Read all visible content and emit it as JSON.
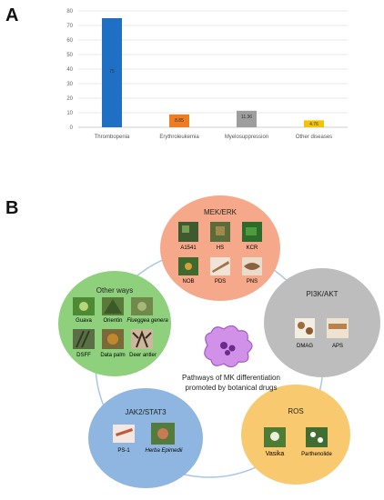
{
  "panel_a": {
    "label": "A",
    "chart_data": {
      "type": "bar",
      "categories": [
        "Thrombopenia",
        "Erythroleukemia",
        "Myelosuppression",
        "Other diseases"
      ],
      "values": [
        75,
        8.85,
        11.36,
        4.76
      ],
      "value_labels": [
        "75",
        "8.85",
        "11.36",
        "4.76"
      ],
      "bar_colors": [
        "#1f6fc5",
        "#ee7d22",
        "#9e9e9e",
        "#f5c400"
      ],
      "yticks": [
        0,
        10,
        20,
        30,
        40,
        50,
        60,
        70,
        80
      ],
      "ylim": [
        0,
        80
      ],
      "grid": true,
      "title": "",
      "xlabel": "",
      "ylabel": ""
    }
  },
  "panel_b": {
    "label": "B",
    "center": {
      "line1": "Pathways of MK differentiation",
      "line2": "promoted by botanical drugs",
      "color": "#d291e8"
    },
    "pathways": {
      "mek": {
        "title": "MEK/ERK",
        "color": "#f5a98a",
        "items": [
          "A1541",
          "HS",
          "KCR",
          "NOB",
          "PDS",
          "PNS"
        ]
      },
      "pi3k": {
        "title": "PI3K/AKT",
        "color": "#bdbdbd",
        "items": [
          "DMAG",
          "APS"
        ]
      },
      "ros": {
        "title": "ROS",
        "color": "#f8c96e",
        "items": [
          "Vasika",
          "Parthenolide"
        ]
      },
      "jak": {
        "title": "JAK2/STAT3",
        "color": "#8fb6e0",
        "items": [
          "PS-1",
          "Herba Epimedii"
        ]
      },
      "other": {
        "title": "Other ways",
        "color": "#8fd07d",
        "items": [
          "Guava",
          "Orientin",
          "Flueggea genera",
          "DSFF",
          "Data palm",
          "Deer antler"
        ]
      }
    }
  }
}
